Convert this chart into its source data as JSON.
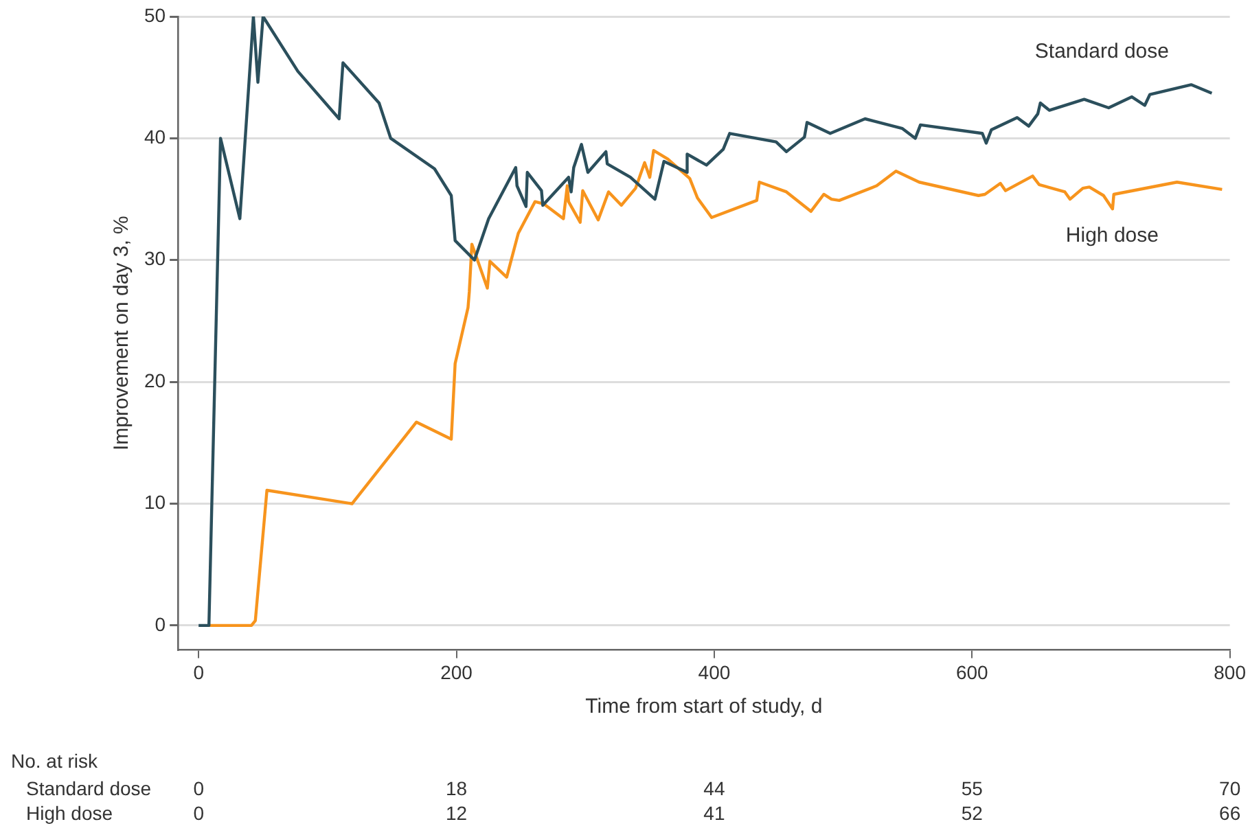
{
  "chart_data": {
    "type": "line",
    "xlabel": "Time from start of study, d",
    "ylabel": "Improvement on day 3, %",
    "xlim": [
      -16,
      800
    ],
    "xticks": [
      0,
      200,
      400,
      600,
      800
    ],
    "ylim": [
      -2,
      50
    ],
    "yticks": [
      0,
      10,
      20,
      30,
      40,
      50
    ],
    "grid": "y",
    "legend": false,
    "marker": "none",
    "line_style": "solid",
    "series": [
      {
        "name": "Standard dose",
        "color": "#2b4f5c",
        "x": [
          0,
          8,
          17,
          32,
          42.5,
          46,
          50,
          77,
          109,
          112,
          140,
          149,
          183,
          196,
          199,
          214,
          225,
          246,
          247,
          254,
          255,
          266,
          267,
          287,
          289,
          291,
          297,
          302,
          316,
          317,
          335,
          354,
          361,
          379,
          379,
          394,
          407,
          412,
          448,
          456,
          470,
          472,
          490,
          517,
          546,
          556,
          560,
          608,
          611,
          615,
          635,
          644,
          651,
          653,
          660,
          687,
          706,
          724,
          734,
          738,
          770,
          786
        ],
        "values": [
          0,
          0,
          40.0,
          33.4,
          50,
          44.6,
          50,
          45.5,
          41.6,
          46.2,
          42.9,
          40.0,
          37.5,
          35.3,
          31.6,
          30.0,
          33.4,
          37.6,
          36.1,
          34.4,
          37.2,
          35.7,
          34.5,
          36.8,
          35.6,
          37.6,
          39.5,
          37.2,
          38.9,
          37.9,
          36.8,
          35.0,
          38.1,
          37.2,
          38.7,
          37.8,
          39.1,
          40.4,
          39.7,
          38.9,
          40.1,
          41.3,
          40.4,
          41.6,
          40.8,
          40.0,
          41.1,
          40.4,
          39.6,
          40.7,
          41.7,
          41.0,
          42.0,
          42.9,
          42.3,
          43.2,
          42.5,
          43.4,
          42.7,
          43.6,
          44.4,
          43.7
        ]
      },
      {
        "name": "High dose",
        "color": "#f7941d",
        "x": [
          8,
          41,
          44,
          53,
          119,
          169,
          196,
          199,
          209,
          210,
          212,
          224,
          226,
          239,
          248,
          261,
          268,
          283,
          286,
          287,
          296,
          298,
          310,
          318,
          328,
          339,
          346,
          350,
          353,
          364,
          381,
          387,
          398,
          433,
          435,
          456,
          475,
          485,
          491,
          497,
          526,
          541,
          559,
          605,
          610,
          622,
          626,
          647,
          652,
          672,
          676,
          686,
          691,
          702,
          709,
          710,
          759,
          794
        ],
        "values": [
          0,
          0,
          0.4,
          11.1,
          10.0,
          16.7,
          15.3,
          21.5,
          26.1,
          27.4,
          31.3,
          27.7,
          29.9,
          28.6,
          32.2,
          34.8,
          34.6,
          33.4,
          36.1,
          34.8,
          33.1,
          35.7,
          33.3,
          35.6,
          34.5,
          35.9,
          38.0,
          36.8,
          39.0,
          38.3,
          36.7,
          35.1,
          33.5,
          34.9,
          36.4,
          35.6,
          34.0,
          35.4,
          35.0,
          34.9,
          36.1,
          37.3,
          36.4,
          35.3,
          35.4,
          36.3,
          35.7,
          36.9,
          36.2,
          35.6,
          35.0,
          35.9,
          36.0,
          35.3,
          34.2,
          35.4,
          36.4,
          35.8
        ]
      }
    ],
    "annotations": [
      "No. at risk",
      "Standard dose",
      "0",
      "18",
      "44",
      "55",
      "70",
      "High dose",
      "0",
      "12",
      "41",
      "52",
      "66"
    ]
  }
}
